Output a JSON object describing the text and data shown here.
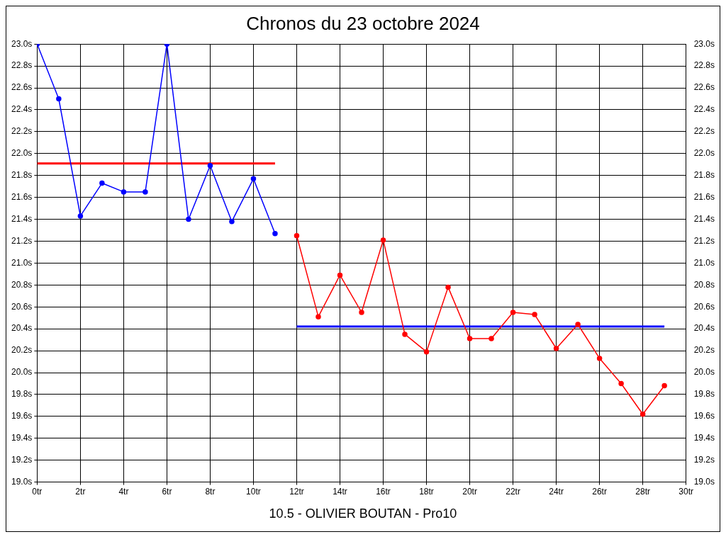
{
  "chart_data": {
    "type": "line",
    "title": "Chronos du 23 octobre 2024",
    "xlim": [
      0,
      30
    ],
    "xticks": [
      {
        "value": 0,
        "label": "0tr"
      },
      {
        "value": 2,
        "label": "2tr"
      },
      {
        "value": 4,
        "label": "4tr"
      },
      {
        "value": 6,
        "label": "6tr"
      },
      {
        "value": 8,
        "label": "8tr"
      },
      {
        "value": 10,
        "label": "10tr"
      },
      {
        "value": 12,
        "label": "12tr"
      },
      {
        "value": 14,
        "label": "14tr"
      },
      {
        "value": 16,
        "label": "16tr"
      },
      {
        "value": 18,
        "label": "18tr"
      },
      {
        "value": 20,
        "label": "20tr"
      },
      {
        "value": 22,
        "label": "22tr"
      },
      {
        "value": 24,
        "label": "24tr"
      },
      {
        "value": 26,
        "label": "26tr"
      },
      {
        "value": 28,
        "label": "28tr"
      },
      {
        "value": 30,
        "label": "30tr"
      }
    ],
    "ylim": [
      19,
      23
    ],
    "yticks": [
      {
        "value": 19,
        "label": "19.0s"
      },
      {
        "value": 19.2,
        "label": "19.2s"
      },
      {
        "value": 19.4,
        "label": "19.4s"
      },
      {
        "value": 19.6,
        "label": "19.6s"
      },
      {
        "value": 19.8,
        "label": "19.8s"
      },
      {
        "value": 20,
        "label": "20.0s"
      },
      {
        "value": 20.2,
        "label": "20.2s"
      },
      {
        "value": 20.4,
        "label": "20.4s"
      },
      {
        "value": 20.6,
        "label": "20.6s"
      },
      {
        "value": 20.8,
        "label": "20.8s"
      },
      {
        "value": 21,
        "label": "21.0s"
      },
      {
        "value": 21.2,
        "label": "21.2s"
      },
      {
        "value": 21.4,
        "label": "21.4s"
      },
      {
        "value": 21.6,
        "label": "21.6s"
      },
      {
        "value": 21.8,
        "label": "21.8s"
      },
      {
        "value": 22,
        "label": "22.0s"
      },
      {
        "value": 22.2,
        "label": "22.2s"
      },
      {
        "value": 22.4,
        "label": "22.4s"
      },
      {
        "value": 22.6,
        "label": "22.6s"
      },
      {
        "value": 22.8,
        "label": "22.8s"
      },
      {
        "value": 23,
        "label": "23.0s"
      }
    ],
    "y2lim": [
      19,
      23
    ],
    "y2ticks": [
      {
        "value": 19,
        "label": "19.0s"
      },
      {
        "value": 19.2,
        "label": "19.2s"
      },
      {
        "value": 19.4,
        "label": "19.4s"
      },
      {
        "value": 19.6,
        "label": "19.6s"
      },
      {
        "value": 19.8,
        "label": "19.8s"
      },
      {
        "value": 20,
        "label": "20.0s"
      },
      {
        "value": 20.2,
        "label": "20.2s"
      },
      {
        "value": 20.4,
        "label": "20.4s"
      },
      {
        "value": 20.6,
        "label": "20.6s"
      },
      {
        "value": 20.8,
        "label": "20.8s"
      },
      {
        "value": 21,
        "label": "21.0s"
      },
      {
        "value": 21.2,
        "label": "21.2s"
      },
      {
        "value": 21.4,
        "label": "21.4s"
      },
      {
        "value": 21.6,
        "label": "21.6s"
      },
      {
        "value": 21.8,
        "label": "21.8s"
      },
      {
        "value": 22,
        "label": "22.0s"
      },
      {
        "value": 22.2,
        "label": "22.2s"
      },
      {
        "value": 22.4,
        "label": "22.4s"
      },
      {
        "value": 22.6,
        "label": "22.6s"
      },
      {
        "value": 22.8,
        "label": "22.8s"
      },
      {
        "value": 23,
        "label": "23.0s"
      }
    ],
    "grid": true,
    "legend": false,
    "marker": "circle",
    "line_style": "solid",
    "series": [
      {
        "color": "#0000ff",
        "x": [
          0,
          1,
          2,
          3,
          4,
          5,
          6,
          7,
          8,
          9,
          10,
          11
        ],
        "values": [
          23.0,
          22.5,
          21.43,
          21.73,
          21.65,
          21.65,
          23.0,
          21.4,
          21.89,
          21.38,
          21.77,
          21.27
        ]
      },
      {
        "color": "#ff0000",
        "x": [
          12,
          13,
          14,
          15,
          16,
          17,
          18,
          19,
          20,
          21,
          22,
          23,
          24,
          25,
          26,
          27,
          28,
          29
        ],
        "values": [
          21.25,
          20.51,
          20.89,
          20.55,
          21.21,
          20.35,
          20.19,
          20.78,
          20.31,
          20.31,
          20.55,
          20.53,
          20.22,
          20.44,
          20.13,
          19.9,
          19.62,
          19.88
        ]
      },
      {
        "color": "#ff0000",
        "marker": "none",
        "x": [
          0,
          11
        ],
        "values": [
          21.91,
          21.91
        ]
      },
      {
        "color": "#0000ff",
        "marker": "none",
        "x": [
          12,
          29
        ],
        "values": [
          20.42,
          20.42
        ]
      }
    ],
    "annotations": [
      "10.5 - OLIVIER BOUTAN - Pro10"
    ]
  }
}
